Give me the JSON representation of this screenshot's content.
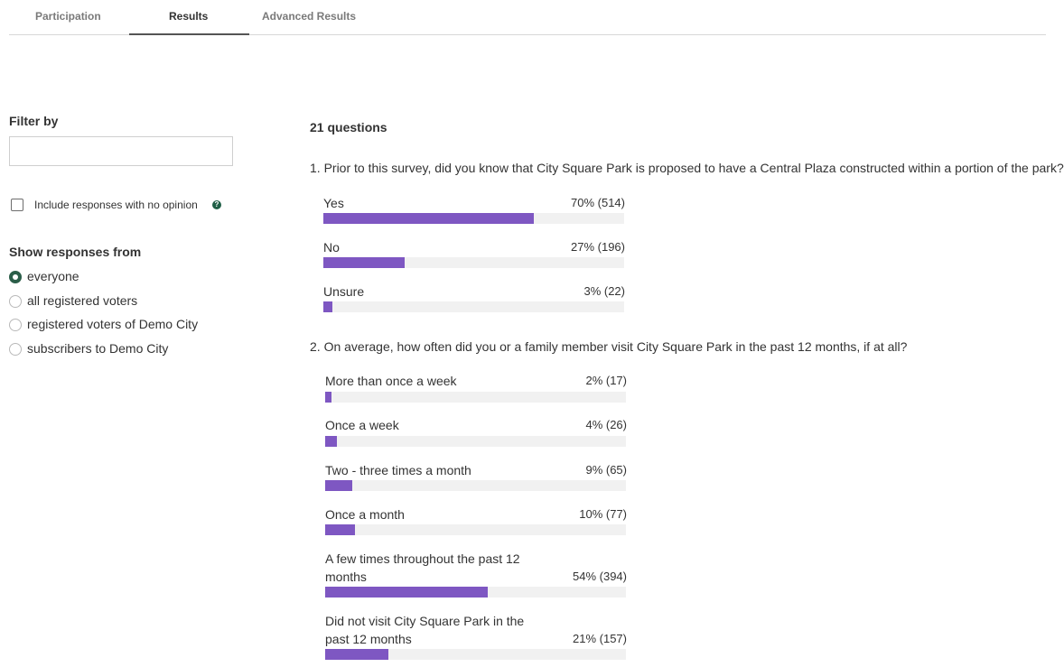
{
  "tabs": [
    {
      "label": "Participation"
    },
    {
      "label": "Results"
    },
    {
      "label": "Advanced Results"
    }
  ],
  "sidebar": {
    "filter_title": "Filter by",
    "filter_value": "",
    "include_no_opinion": {
      "label": "Include responses with no opinion",
      "checked": false
    },
    "help_icon": "help-circle-icon",
    "show_title": "Show responses from",
    "options": [
      {
        "label": "everyone",
        "selected": true
      },
      {
        "label": "all registered voters",
        "selected": false
      },
      {
        "label": "registered voters of Demo City",
        "selected": false
      },
      {
        "label": "subscribers to Demo City",
        "selected": false
      }
    ]
  },
  "main": {
    "question_count": "21 questions",
    "questions": [
      {
        "text": "1.  Prior to this survey, did you know that City Square Park is proposed to have a Central Plaza constructed within a portion of the park?",
        "answers": [
          {
            "label": "Yes",
            "value": "70% (514)",
            "percent": 70
          },
          {
            "label": "No",
            "value": "27% (196)",
            "percent": 27
          },
          {
            "label": "Unsure",
            "value": "3% (22)",
            "percent": 3
          }
        ]
      },
      {
        "text": "2.  On average, how often did you or a family member visit City Square Park in the past 12 months, if at all?",
        "answers": [
          {
            "label": "More than once a week",
            "value": "2% (17)",
            "percent": 2
          },
          {
            "label": "Once a week",
            "value": "4% (26)",
            "percent": 4
          },
          {
            "label": "Two - three times a month",
            "value": "9% (65)",
            "percent": 9
          },
          {
            "label": "Once a month",
            "value": "10% (77)",
            "percent": 10
          },
          {
            "label": "A few times throughout the past 12 months",
            "value": "54% (394)",
            "percent": 54
          },
          {
            "label": "Did not visit City Square Park in the past 12 months",
            "value": "21% (157)",
            "percent": 21
          }
        ]
      }
    ]
  },
  "colors": {
    "bar_fill": "#7e57c2",
    "bar_track": "#f1f1f1",
    "accent": "#2b5e49"
  }
}
